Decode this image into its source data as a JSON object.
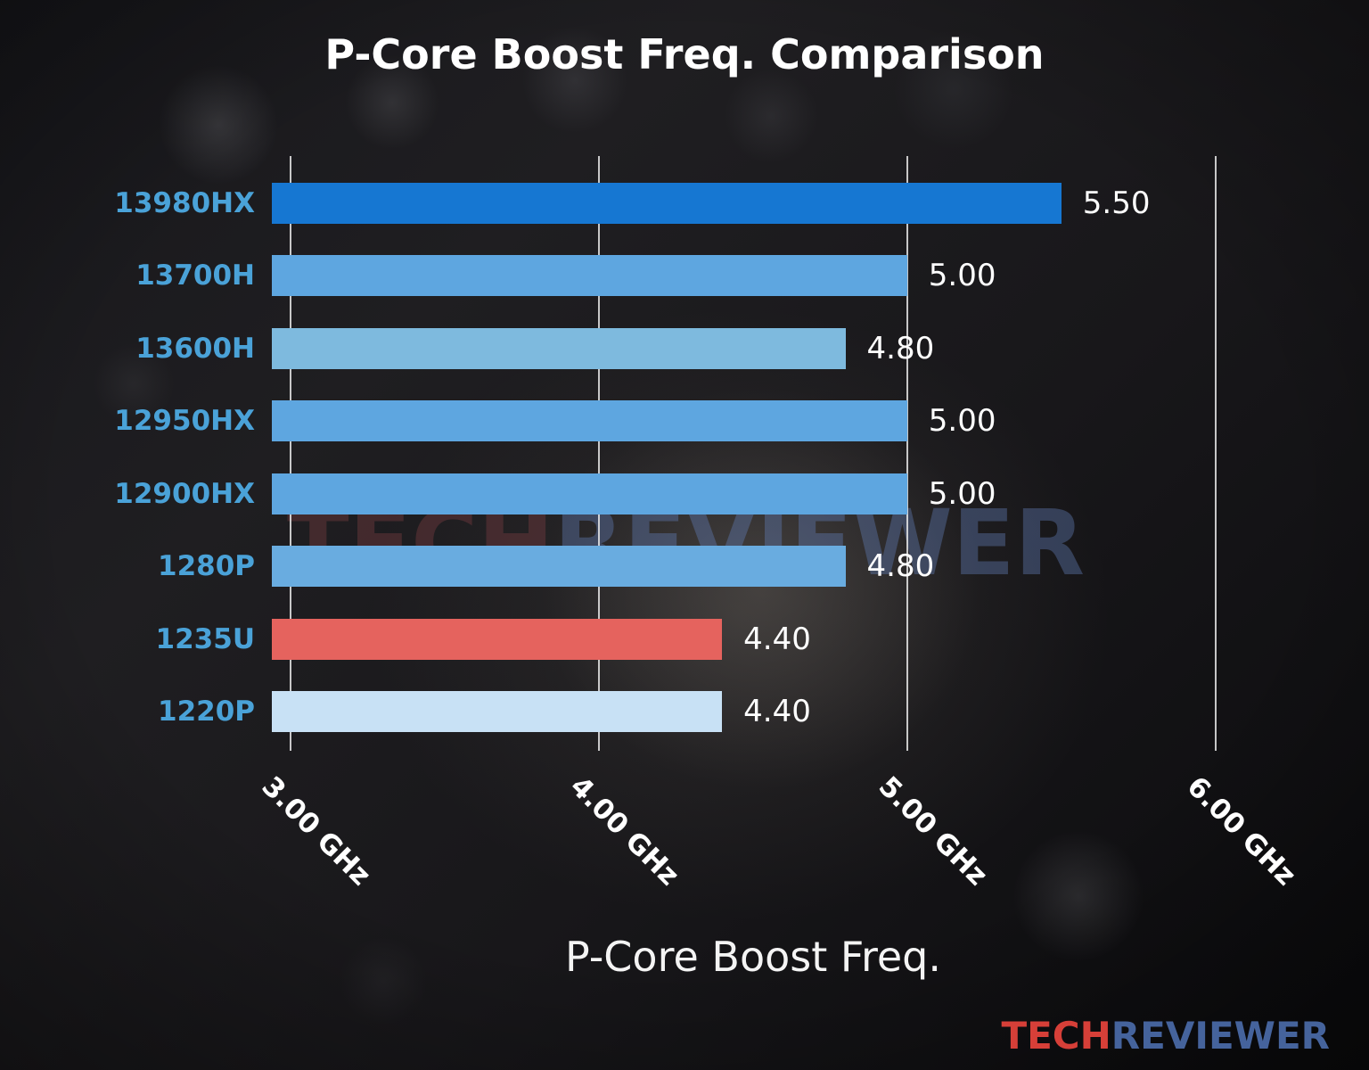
{
  "watermark": {
    "part1": "TECH",
    "part2": "REVIEWER"
  },
  "brand": {
    "part1": "TECH",
    "part2": "REVIEWER",
    "tech_color": "#d63f38",
    "reviewer_color": "#45639c"
  },
  "chart_data": {
    "type": "bar",
    "orientation": "horizontal",
    "title": "P-Core Boost Freq. Comparison",
    "xlabel": "P-Core Boost Freq.",
    "categories": [
      "13980HX",
      "13700H",
      "13600H",
      "12950HX",
      "12900HX",
      "1280P",
      "1235U",
      "1220P"
    ],
    "values": [
      5.5,
      5.0,
      4.8,
      5.0,
      5.0,
      4.8,
      4.4,
      4.4
    ],
    "value_labels": [
      "5.50",
      "5.00",
      "4.80",
      "5.00",
      "5.00",
      "4.80",
      "4.40",
      "4.40"
    ],
    "bar_colors": [
      "#1677d2",
      "#5ea6e0",
      "#7ebade",
      "#5ea6e0",
      "#5ea6e0",
      "#69ace0",
      "#e5635e",
      "#c8e1f5"
    ],
    "x_ticks": [
      {
        "value": 3.0,
        "label": "3.00 GHz"
      },
      {
        "value": 4.0,
        "label": "4.00 GHz"
      },
      {
        "value": 5.0,
        "label": "5.00 GHz"
      },
      {
        "value": 6.0,
        "label": "6.00 GHz"
      }
    ],
    "xlim": [
      2.94,
      6.4
    ],
    "grid": true,
    "legend": null,
    "category_label_color": "#4aa2d8",
    "highlight_category": "1235U",
    "unit": "GHz"
  }
}
